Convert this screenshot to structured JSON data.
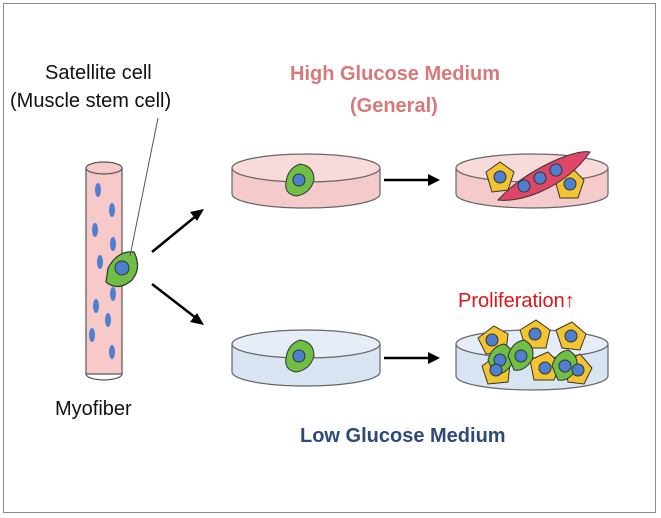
{
  "labels": {
    "satellite_line1": "Satellite cell",
    "satellite_line2": "(Muscle stem cell)",
    "myofiber": "Myofiber",
    "high_glucose_line1": "High Glucose Medium",
    "high_glucose_line2": "(General)",
    "proliferation": "Proliferation↑",
    "low_glucose": "Low Glucose Medium"
  },
  "colors": {
    "myofiber_fill": "#f7c9c9",
    "nucleus": "#4f7fd0",
    "satellite_cell": "#6fbf45",
    "high_dish": "#f4caca",
    "low_dish": "#d9e4f2",
    "myotube": "#e0466a",
    "differentiated_cell": "#f4c430",
    "high_text": "#d9787a",
    "low_text": "#2e4a78",
    "proliferation_text": "#e01515"
  }
}
